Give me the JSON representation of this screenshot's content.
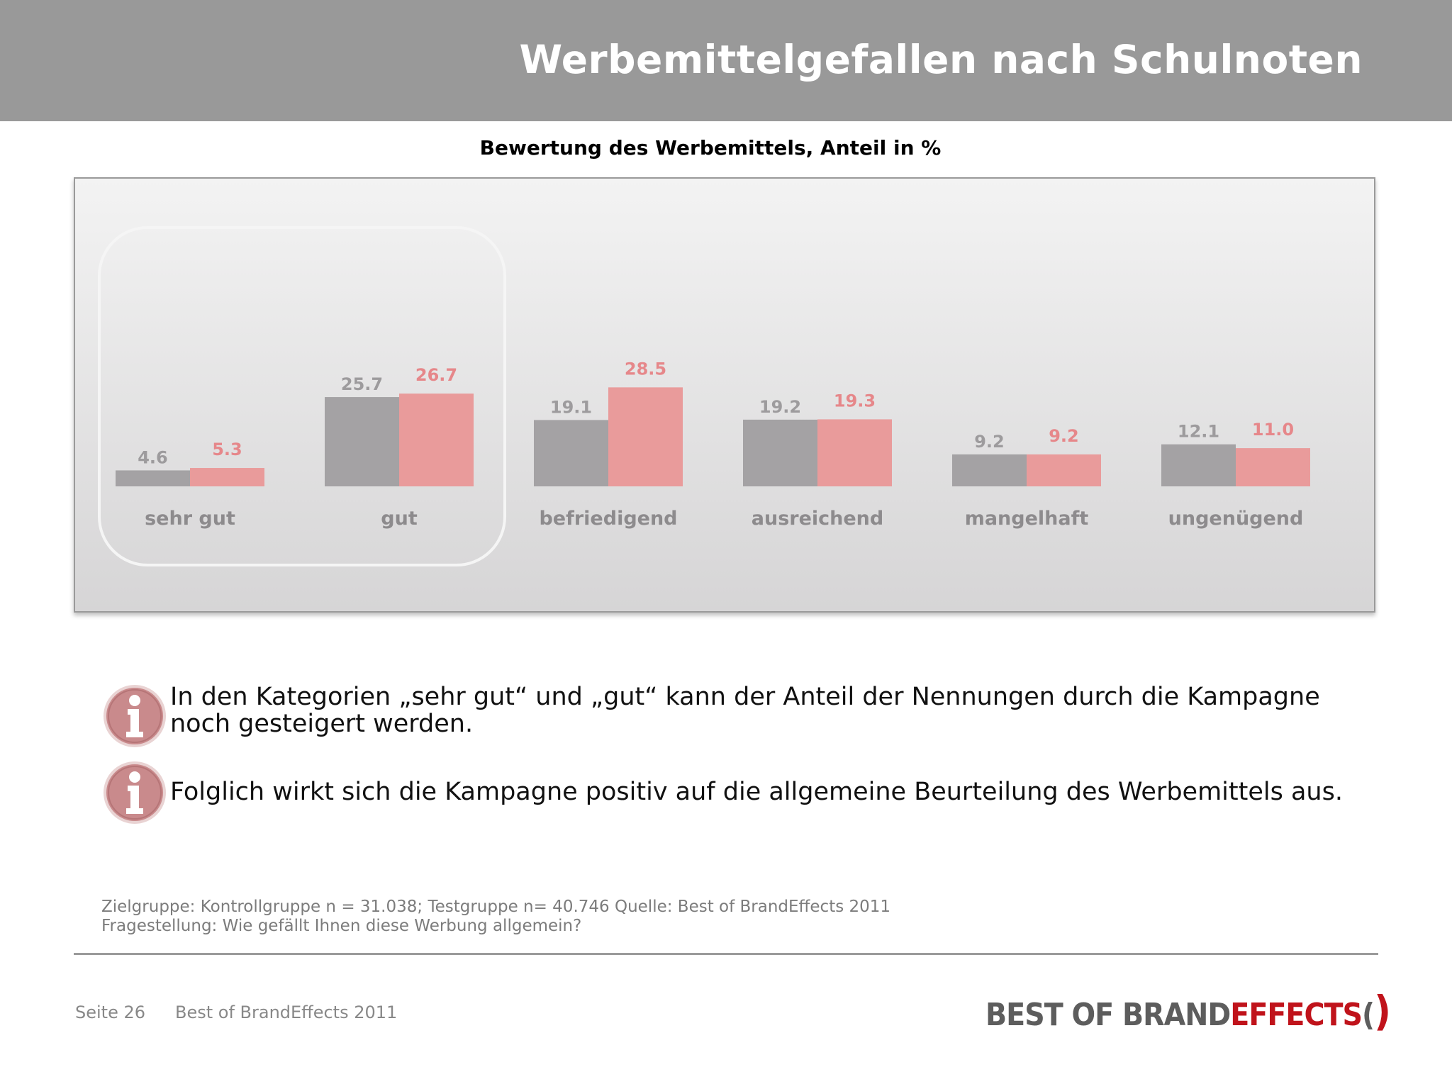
{
  "header": {
    "title": "Werbemittelgefallen nach Schulnoten"
  },
  "chart_data": {
    "type": "bar",
    "title": "Bewertung des Werbemittels, Anteil in %",
    "categories": [
      "sehr gut",
      "gut",
      "befriedigend",
      "ausreichend",
      "mangelhaft",
      "ungenügend"
    ],
    "series": [
      {
        "values": [
          4.6,
          25.7,
          19.1,
          19.2,
          9.2,
          12.1
        ],
        "color": "#a4a2a4"
      },
      {
        "values": [
          5.3,
          26.7,
          28.5,
          19.3,
          9.2,
          11.0
        ],
        "color": "#e99b9b"
      }
    ],
    "ylim": [
      0,
      100
    ],
    "grid": false,
    "label_colors": {
      "series0": "#9d9b9d",
      "series1": "#e6878a",
      "category": "#8d8b8d"
    }
  },
  "notes": [
    {
      "text": "In den Kategorien „sehr gut“ und „gut“ kann der Anteil der Nennungen durch die Kampagne noch gesteigert werden."
    },
    {
      "text": "Folglich wirkt sich die Kampagne positiv auf die allgemeine Beurteilung des Werbemittels aus."
    }
  ],
  "icons": {
    "note": "info-icon",
    "note_color": "#c98a8c"
  },
  "source": {
    "line1": "Zielgruppe: Kontrollgruppe n = 31.038; Testgruppe n= 40.746 Quelle: Best of BrandEffects 2011",
    "line2": "Fragestellung: Wie gefällt Ihnen diese Werbung allgemein?"
  },
  "footer": {
    "page": "Seite 26",
    "source": "Best of BrandEffects 2011",
    "logo_part1": "BEST OF BRAND",
    "logo_part2": "EFFECTS",
    "logo_open": "(",
    "logo_close": ")"
  }
}
